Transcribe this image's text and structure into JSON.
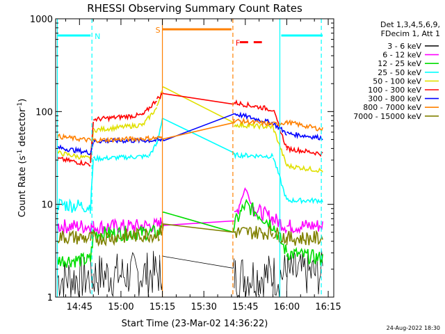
{
  "chart_data": {
    "type": "line",
    "title": "RHESSI Observing Summary Count Rates",
    "xlabel": "Start Time (23-Mar-02 14:36:22)",
    "ylabel_main": "Count Rate (s",
    "ylabel_sup1": "-1",
    "ylabel_mid": " detector",
    "ylabel_sup2": "-1",
    "ylabel_end": ")",
    "y_scale": "log",
    "ylim": [
      1,
      1000
    ],
    "xlim": [
      "14:36:22",
      "16:17:00"
    ],
    "y_ticks": [
      {
        "value": 1,
        "label": "1"
      },
      {
        "value": 10,
        "label": "10"
      },
      {
        "value": 100,
        "label": "100"
      },
      {
        "value": 1000,
        "label": "1000"
      }
    ],
    "x_ticks": [
      {
        "value": "14:45",
        "label": "14:45"
      },
      {
        "value": "15:00",
        "label": "15:00"
      },
      {
        "value": "15:15",
        "label": "15:15"
      },
      {
        "value": "15:30",
        "label": "15:30"
      },
      {
        "value": "15:45",
        "label": "15:45"
      },
      {
        "value": "16:00",
        "label": "16:00"
      },
      {
        "value": "16:15",
        "label": "16:15"
      }
    ],
    "legend_header": [
      "Det 1,3,4,5,6,9,",
      "FDecim 1, Att 1"
    ],
    "legend_placement": "right",
    "series": [
      {
        "name": "3 - 6 keV",
        "color": "#000000",
        "points": [
          [
            "14:37",
            1.6
          ],
          [
            "14:49",
            1.6
          ],
          [
            "14:50",
            1.7
          ],
          [
            "15:14",
            1.8
          ],
          [
            "15:15",
            2.2
          ],
          [
            "15:41",
            1.7
          ],
          [
            "15:55",
            1.7
          ],
          [
            "16:00",
            1.8
          ],
          [
            "16:13",
            1.8
          ]
        ]
      },
      {
        "name": "6 - 12 keV",
        "color": "#ff00ff",
        "points": [
          [
            "14:37",
            5.8
          ],
          [
            "14:49",
            5.8
          ],
          [
            "14:50",
            5.7
          ],
          [
            "15:14",
            5.9
          ],
          [
            "15:15",
            7
          ],
          [
            "15:41",
            7
          ],
          [
            "15:45",
            15
          ],
          [
            "15:48",
            9
          ],
          [
            "15:55",
            7
          ],
          [
            "16:00",
            5.8
          ],
          [
            "16:13",
            5.9
          ]
        ]
      },
      {
        "name": "12 - 25 keV",
        "color": "#00dd00",
        "points": [
          [
            "14:37",
            2.5
          ],
          [
            "14:49",
            2.5
          ],
          [
            "14:50",
            4.8
          ],
          [
            "15:14",
            5
          ],
          [
            "15:15",
            7
          ],
          [
            "15:41",
            6
          ],
          [
            "15:45",
            10
          ],
          [
            "15:55",
            6
          ],
          [
            "16:00",
            3
          ],
          [
            "16:13",
            2.6
          ]
        ]
      },
      {
        "name": "25 - 50 keV",
        "color": "#00ffff",
        "points": [
          [
            "14:37",
            10
          ],
          [
            "14:49",
            9.5
          ],
          [
            "14:50",
            31
          ],
          [
            "15:10",
            33
          ],
          [
            "15:13",
            45
          ],
          [
            "15:15",
            85
          ],
          [
            "15:41",
            34
          ],
          [
            "15:55",
            33
          ],
          [
            "16:00",
            11
          ],
          [
            "16:13",
            11
          ]
        ]
      },
      {
        "name": "50 - 100 keV",
        "color": "#e0e000",
        "points": [
          [
            "14:37",
            36
          ],
          [
            "14:49",
            31
          ],
          [
            "14:50",
            63
          ],
          [
            "15:08",
            72
          ],
          [
            "15:13",
            110
          ],
          [
            "15:15",
            180
          ],
          [
            "15:41",
            72
          ],
          [
            "15:55",
            68
          ],
          [
            "16:00",
            26
          ],
          [
            "16:13",
            23
          ]
        ]
      },
      {
        "name": "100 - 300 keV",
        "color": "#ff0000",
        "points": [
          [
            "14:37",
            31
          ],
          [
            "14:49",
            27
          ],
          [
            "14:50",
            82
          ],
          [
            "15:08",
            92
          ],
          [
            "15:13",
            135
          ],
          [
            "15:15",
            155
          ],
          [
            "15:41",
            125
          ],
          [
            "15:55",
            105
          ],
          [
            "16:00",
            40
          ],
          [
            "16:13",
            35
          ]
        ]
      },
      {
        "name": "300 - 800 keV",
        "color": "#0000ff",
        "points": [
          [
            "14:37",
            41
          ],
          [
            "14:49",
            36
          ],
          [
            "14:50",
            48
          ],
          [
            "15:14",
            49
          ],
          [
            "15:41",
            95
          ],
          [
            "15:55",
            75
          ],
          [
            "16:00",
            58
          ],
          [
            "16:13",
            52
          ]
        ]
      },
      {
        "name": "800 - 7000 keV",
        "color": "#ff8000",
        "points": [
          [
            "14:37",
            54
          ],
          [
            "14:49",
            49
          ],
          [
            "14:50",
            49
          ],
          [
            "15:14",
            52
          ],
          [
            "15:41",
            80
          ],
          [
            "15:55",
            73
          ],
          [
            "16:00",
            77
          ],
          [
            "16:13",
            64
          ]
        ]
      },
      {
        "name": "7000 - 15000 keV",
        "color": "#808000",
        "points": [
          [
            "14:37",
            4.5
          ],
          [
            "14:49",
            4.3
          ],
          [
            "14:50",
            4.3
          ],
          [
            "15:14",
            4.8
          ],
          [
            "15:15",
            5.5
          ],
          [
            "15:41",
            5
          ],
          [
            "15:55",
            5
          ],
          [
            "16:00",
            4.3
          ],
          [
            "16:13",
            4.3
          ]
        ]
      }
    ],
    "annotations": {
      "vertical_lines": [
        {
          "time": "14:37",
          "color": "#00ffff",
          "style": "solid"
        },
        {
          "time": "14:49.5",
          "color": "#00ffff",
          "style": "dashed"
        },
        {
          "time": "15:15",
          "color": "#ff8000",
          "style": "solid"
        },
        {
          "time": "15:40.5",
          "color": "#ff8000",
          "style": "dashed"
        },
        {
          "time": "15:57.5",
          "color": "#00ffff",
          "style": "solid"
        },
        {
          "time": "16:12.5",
          "color": "#00ffff",
          "style": "dashed"
        }
      ],
      "horizontal_flags": [
        {
          "from": "14:37",
          "to": "14:49",
          "value": 660,
          "color": "#00ffff",
          "style": "solid"
        },
        {
          "from": "15:15",
          "to": "15:40",
          "value": 770,
          "color": "#ff8000",
          "style": "solid"
        },
        {
          "from": "15:43",
          "to": "15:51",
          "value": 560,
          "color": "#ff0000",
          "style": "dashed"
        },
        {
          "from": "15:58",
          "to": "16:13",
          "value": 660,
          "color": "#00ffff",
          "style": "solid"
        }
      ],
      "letters": [
        {
          "time": "14:50.5",
          "value": 660,
          "text": "N",
          "color": "#00ffff"
        },
        {
          "time": "15:12.5",
          "value": 770,
          "text": "S",
          "color": "#ff8000"
        },
        {
          "time": "15:41.5",
          "value": 560,
          "text": "F",
          "color": "#ff0000"
        }
      ]
    }
  },
  "footer": {
    "timestamp": "24-Aug-2022 18:30"
  }
}
